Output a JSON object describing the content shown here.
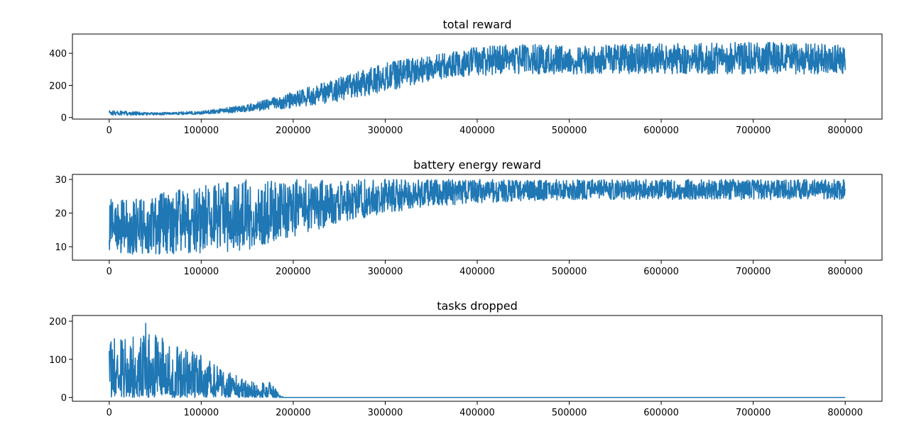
{
  "chart_data": [
    {
      "type": "line",
      "title": "total reward",
      "xlabel": "",
      "ylabel": "",
      "xlim": [
        -40000,
        840000
      ],
      "ylim": [
        -10,
        520
      ],
      "xticks": [
        0,
        100000,
        200000,
        300000,
        400000,
        500000,
        600000,
        700000,
        800000
      ],
      "xtick_labels": [
        "0",
        "100000",
        "200000",
        "300000",
        "400000",
        "500000",
        "600000",
        "700000",
        "800000"
      ],
      "yticks": [
        0,
        200,
        400
      ],
      "ytick_labels": [
        "0",
        "200",
        "400"
      ],
      "grid": false,
      "color": "#1f77b4",
      "envelope": {
        "x": [
          0,
          50000,
          100000,
          150000,
          200000,
          250000,
          300000,
          350000,
          400000,
          450000,
          500000,
          600000,
          700000,
          800000
        ],
        "lower": [
          12,
          15,
          20,
          35,
          60,
          100,
          160,
          230,
          260,
          270,
          270,
          270,
          270,
          270
        ],
        "upper": [
          45,
          30,
          40,
          80,
          160,
          250,
          340,
          390,
          440,
          460,
          450,
          460,
          470,
          460
        ]
      }
    },
    {
      "type": "line",
      "title": "battery energy reward",
      "xlabel": "",
      "ylabel": "",
      "xlim": [
        -40000,
        840000
      ],
      "ylim": [
        6,
        31.5
      ],
      "xticks": [
        0,
        100000,
        200000,
        300000,
        400000,
        500000,
        600000,
        700000,
        800000
      ],
      "xtick_labels": [
        "0",
        "100000",
        "200000",
        "300000",
        "400000",
        "500000",
        "600000",
        "700000",
        "800000"
      ],
      "yticks": [
        10,
        20,
        30
      ],
      "ytick_labels": [
        "10",
        "20",
        "30"
      ],
      "grid": false,
      "color": "#1f77b4",
      "envelope": {
        "x": [
          0,
          50000,
          100000,
          150000,
          200000,
          250000,
          300000,
          350000,
          400000,
          500000,
          600000,
          700000,
          800000
        ],
        "lower": [
          8,
          7.5,
          8,
          9,
          13,
          17,
          20,
          22,
          23,
          24,
          24,
          24,
          24
        ],
        "upper": [
          24,
          26,
          28,
          30,
          30,
          30,
          30,
          30,
          30,
          30,
          30,
          30,
          30
        ]
      }
    },
    {
      "type": "line",
      "title": "tasks dropped",
      "xlabel": "",
      "ylabel": "",
      "xlim": [
        -40000,
        840000
      ],
      "ylim": [
        -10,
        215
      ],
      "xticks": [
        0,
        100000,
        200000,
        300000,
        400000,
        500000,
        600000,
        700000,
        800000
      ],
      "xtick_labels": [
        "0",
        "100000",
        "200000",
        "300000",
        "400000",
        "500000",
        "600000",
        "700000",
        "800000"
      ],
      "yticks": [
        0,
        100,
        200
      ],
      "ytick_labels": [
        "0",
        "100",
        "200"
      ],
      "grid": false,
      "color": "#1f77b4",
      "envelope": {
        "x": [
          0,
          20000,
          40000,
          60000,
          80000,
          100000,
          120000,
          140000,
          160000,
          175000,
          185000,
          190000,
          800000
        ],
        "lower": [
          0,
          0,
          0,
          0,
          0,
          0,
          0,
          0,
          0,
          0,
          0,
          0,
          0
        ],
        "upper": [
          170,
          150,
          200,
          150,
          130,
          110,
          80,
          60,
          40,
          40,
          10,
          0,
          0
        ]
      }
    }
  ]
}
